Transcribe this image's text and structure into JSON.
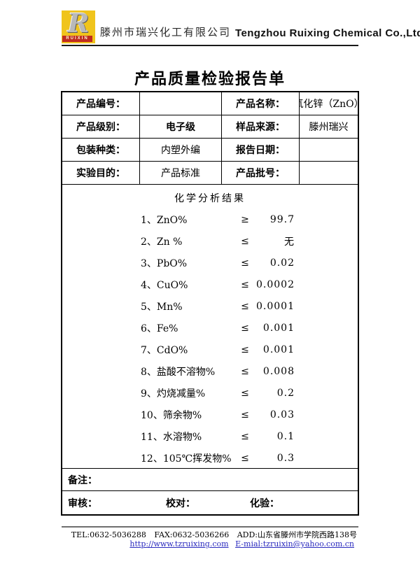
{
  "header": {
    "logo": {
      "letter": "R",
      "brand": "RUIXIN",
      "yellow": "#f0c41c",
      "red": "#bf2b1f"
    },
    "company_cn": "滕州市瑞兴化工有限公司",
    "company_en": "Tengzhou Ruixing Chemical Co.,Ltd."
  },
  "title": "产品质量检验报告单",
  "info": {
    "rows": [
      {
        "l1": "产品编号：",
        "v1": "",
        "l2": "产品名称：",
        "v2": "氧化锌（ZnO）"
      },
      {
        "l1": "产品级别：",
        "v1": "电子级",
        "l2": "样品来源：",
        "v2": "滕州瑞兴"
      },
      {
        "l1": "包装种类：",
        "v1": "内塑外编",
        "l2": "报告日期：",
        "v2": ""
      },
      {
        "l1": "实验目的：",
        "v1": "产品标准",
        "l2": "产品批号：",
        "v2": ""
      }
    ]
  },
  "chem": {
    "section_title": "化学分析结果",
    "items": [
      {
        "name": "1、ZnO%",
        "op": "≥",
        "value": "99.7"
      },
      {
        "name": "2、Zn %",
        "op": "≤",
        "value": "无"
      },
      {
        "name": "3、PbO%",
        "op": "≤",
        "value": "0.02"
      },
      {
        "name": "4、CuO%",
        "op": "≤",
        "value": "0.0002"
      },
      {
        "name": "5、Mn%",
        "op": "≤",
        "value": "0.0001"
      },
      {
        "name": "6、Fe%",
        "op": "≤",
        "value": "0.001"
      },
      {
        "name": "7、CdO%",
        "op": "≤",
        "value": "0.001"
      },
      {
        "name": "8、盐酸不溶物%",
        "op": "≤",
        "value": "0.008"
      },
      {
        "name": "9、灼烧减量%",
        "op": "≤",
        "value": "0.2"
      },
      {
        "name": "10、筛余物%",
        "op": "≤",
        "value": "0.03"
      },
      {
        "name": "11、水溶物%",
        "op": "≤",
        "value": "0.1"
      },
      {
        "name": "12、105℃挥发物%",
        "op": "≤",
        "value": "0.3"
      }
    ]
  },
  "remark_label": "备注：",
  "signoff": {
    "review": "审核：",
    "proofread": "校对：",
    "assay": "化验："
  },
  "footer": {
    "tel": "TEL:0632-5036288",
    "fax": "FAX:0632-5036266",
    "address": "ADD:山东省滕州市学院西路138号",
    "website": "http://www.tzruixing.com",
    "email": "E-mial:tzruixin@yahoo.com.cn",
    "link_color": "#2b2bbf"
  }
}
